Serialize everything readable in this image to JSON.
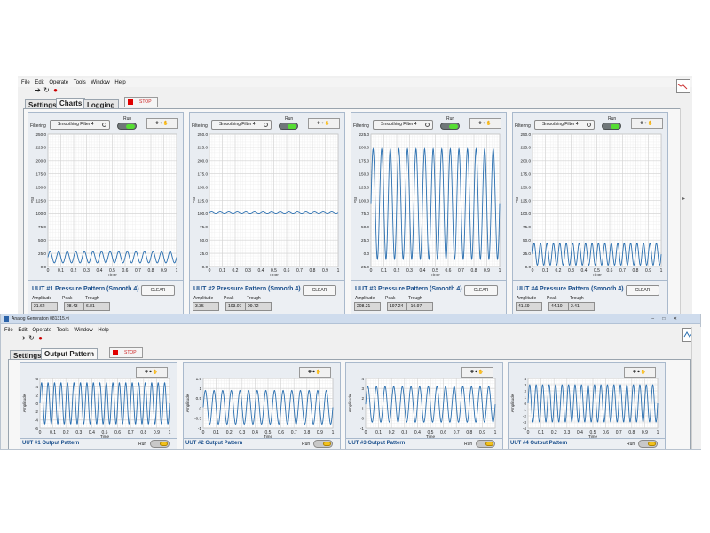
{
  "top_window": {
    "menu": [
      "File",
      "Edit",
      "Operate",
      "Tools",
      "Window",
      "Help"
    ],
    "tabs": [
      "Settings",
      "Charts",
      "Logging"
    ],
    "active_tab": "Charts",
    "stop_label": "STOP",
    "panels": [
      {
        "filtering_label": "Filtering",
        "filter_value": "Smoothing Filter 4",
        "run_label": "Run",
        "title": "UUT #1 Pressure Pattern (Smooth 4)",
        "clear_label": "CLEAR",
        "amplitude_label": "Amplitude",
        "peak_label": "Peak",
        "trough_label": "Trough",
        "amplitude": "21.62",
        "peak": "28.43",
        "trough": "6.81",
        "y_ticks": [
          "250.0",
          "225.0",
          "200.0",
          "175.0",
          "150.0",
          "125.0",
          "100.0",
          "75.0",
          "50.0",
          "25.0",
          "0.0"
        ],
        "y_axis": "PSI",
        "x_ticks": [
          "0",
          "0.1",
          "0.2",
          "0.3",
          "0.4",
          "0.5",
          "0.6",
          "0.7",
          "0.8",
          "0.9",
          "1"
        ],
        "x_axis": "Time"
      },
      {
        "filtering_label": "Filtering",
        "filter_value": "Smoothing Filter 4",
        "run_label": "Run",
        "title": "UUT #2 Pressure Pattern (Smooth 4)",
        "clear_label": "CLEAR",
        "amplitude_label": "Amplitude",
        "peak_label": "Peak",
        "trough_label": "Trough",
        "amplitude": "3.35",
        "peak": "103.07",
        "trough": "99.72",
        "y_ticks": [
          "250.0",
          "225.0",
          "200.0",
          "175.0",
          "150.0",
          "125.0",
          "100.0",
          "75.0",
          "50.0",
          "25.0",
          "0.0"
        ],
        "y_axis": "PSI",
        "x_ticks": [
          "0",
          "0.1",
          "0.2",
          "0.3",
          "0.4",
          "0.5",
          "0.6",
          "0.7",
          "0.8",
          "0.9",
          "1"
        ],
        "x_axis": "Time"
      },
      {
        "filtering_label": "Filtering",
        "filter_value": "Smoothing Filter 4",
        "run_label": "Run",
        "title": "UUT #3 Pressure Pattern (Smooth 4)",
        "clear_label": "CLEAR",
        "amplitude_label": "Amplitude",
        "peak_label": "Peak",
        "trough_label": "Trough",
        "amplitude": "208.21",
        "peak": "197.24",
        "trough": "-10.97",
        "y_ticks": [
          "225.0",
          "200.0",
          "175.0",
          "150.0",
          "125.0",
          "100.0",
          "75.0",
          "50.0",
          "25.0",
          "0.0",
          "-25.0"
        ],
        "y_axis": "PSI",
        "x_ticks": [
          "0",
          "0.1",
          "0.2",
          "0.3",
          "0.4",
          "0.5",
          "0.6",
          "0.7",
          "0.8",
          "0.9",
          "1"
        ],
        "x_axis": "Time"
      },
      {
        "filtering_label": "Filtering",
        "filter_value": "Smoothing Filter 4",
        "run_label": "Run",
        "title": "UUT #4 Pressure Pattern (Smooth 4)",
        "clear_label": "CLEAR",
        "amplitude_label": "Amplitude",
        "peak_label": "Peak",
        "trough_label": "Trough",
        "amplitude": "41.69",
        "peak": "44.10",
        "trough": "2.41",
        "y_ticks": [
          "250.0",
          "225.0",
          "200.0",
          "175.0",
          "150.0",
          "125.0",
          "100.0",
          "75.0",
          "50.0",
          "25.0",
          "0.0"
        ],
        "y_axis": "PSI",
        "x_ticks": [
          "0",
          "0.1",
          "0.2",
          "0.3",
          "0.4",
          "0.5",
          "0.6",
          "0.7",
          "0.8",
          "0.9",
          "1"
        ],
        "x_axis": "Time"
      }
    ]
  },
  "bottom_window": {
    "title": "Analog Generation 081315.vi",
    "menu": [
      "File",
      "Edit",
      "Operate",
      "Tools",
      "Window",
      "Help"
    ],
    "tabs": [
      "Settings",
      "Output Pattern"
    ],
    "active_tab": "Output Pattern",
    "stop_label": "STOP",
    "panels": [
      {
        "title": "UUT #1 Output Pattern",
        "run_label": "Run",
        "y_ticks": [
          "6",
          "4",
          "2",
          "0",
          "-2",
          "-4",
          "-6"
        ],
        "y_axis": "Amplitude",
        "x_ticks": [
          "0",
          "0.1",
          "0.2",
          "0.3",
          "0.4",
          "0.5",
          "0.6",
          "0.7",
          "0.8",
          "0.9",
          "1"
        ],
        "x_axis": "Time"
      },
      {
        "title": "UUT #2 Output Pattern",
        "run_label": "Run",
        "y_ticks": [
          "1.5",
          "1",
          "0.5",
          "0",
          "-0.5",
          "-1"
        ],
        "y_axis": "Amplitude",
        "x_ticks": [
          "0",
          "0.1",
          "0.2",
          "0.3",
          "0.4",
          "0.5",
          "0.6",
          "0.7",
          "0.8",
          "0.9",
          "1"
        ],
        "x_axis": "Time"
      },
      {
        "title": "UUT #3 Output Pattern",
        "run_label": "Run",
        "y_ticks": [
          "4",
          "3",
          "2",
          "1",
          "0",
          "-1"
        ],
        "y_axis": "Amplitude",
        "x_ticks": [
          "0",
          "0.1",
          "0.2",
          "0.3",
          "0.4",
          "0.5",
          "0.6",
          "0.7",
          "0.8",
          "0.9",
          "1"
        ],
        "x_axis": "Time"
      },
      {
        "title": "UUT #4 Output Pattern",
        "run_label": "Run",
        "y_ticks": [
          "4",
          "3",
          "2",
          "1",
          "0",
          "-1",
          "-2",
          "-3",
          "-4"
        ],
        "y_axis": "Amplitude",
        "x_ticks": [
          "0",
          "0.1",
          "0.2",
          "0.3",
          "0.4",
          "0.5",
          "0.6",
          "0.7",
          "0.8",
          "0.9",
          "1"
        ],
        "x_axis": "Time"
      }
    ]
  },
  "colors": {
    "trace": "#2a6fb0",
    "grid": "#dcdcdc",
    "title_blue": "#1a4f8c"
  },
  "chart_data": [
    {
      "type": "line",
      "title": "UUT #1 Pressure Pattern (Smooth 4)",
      "xlabel": "Time",
      "ylabel": "PSI",
      "xlim": [
        0,
        1
      ],
      "ylim": [
        0,
        250
      ],
      "grid": true,
      "series": [
        {
          "cycles": 15,
          "center": 17.6,
          "amplitude": 10.8
        }
      ]
    },
    {
      "type": "line",
      "title": "UUT #2 Pressure Pattern (Smooth 4)",
      "xlabel": "Time",
      "ylabel": "PSI",
      "xlim": [
        0,
        1
      ],
      "ylim": [
        0,
        250
      ],
      "grid": true,
      "series": [
        {
          "cycles": 15,
          "center": 101.4,
          "amplitude": 1.7
        }
      ]
    },
    {
      "type": "line",
      "title": "UUT #3 Pressure Pattern (Smooth 4)",
      "xlabel": "Time",
      "ylabel": "PSI",
      "xlim": [
        0,
        1
      ],
      "ylim": [
        -25,
        225
      ],
      "grid": true,
      "series": [
        {
          "cycles": 15,
          "center": 93.1,
          "amplitude": 104.1
        }
      ]
    },
    {
      "type": "line",
      "title": "UUT #4 Pressure Pattern (Smooth 4)",
      "xlabel": "Time",
      "ylabel": "PSI",
      "xlim": [
        0,
        1
      ],
      "ylim": [
        0,
        250
      ],
      "grid": true,
      "series": [
        {
          "cycles": 20,
          "center": 23.3,
          "amplitude": 20.8
        }
      ]
    },
    {
      "type": "line",
      "title": "UUT #1 Output Pattern",
      "xlabel": "Time",
      "ylabel": "Amplitude",
      "xlim": [
        0,
        1
      ],
      "ylim": [
        -6,
        6
      ],
      "grid": true,
      "series": [
        {
          "cycles": 20,
          "center": 0,
          "amplitude": 5
        }
      ]
    },
    {
      "type": "line",
      "title": "UUT #2 Output Pattern",
      "xlabel": "Time",
      "ylabel": "Amplitude",
      "xlim": [
        0,
        1
      ],
      "ylim": [
        -1,
        1.5
      ],
      "grid": true,
      "series": [
        {
          "cycles": 15,
          "center": 0.05,
          "amplitude": 0.85
        }
      ]
    },
    {
      "type": "line",
      "title": "UUT #3 Output Pattern",
      "xlabel": "Time",
      "ylabel": "Amplitude",
      "xlim": [
        0,
        1
      ],
      "ylim": [
        -1,
        4
      ],
      "grid": true,
      "series": [
        {
          "cycles": 15,
          "center": 1.4,
          "amplitude": 1.8
        }
      ]
    },
    {
      "type": "line",
      "title": "UUT #4 Output Pattern",
      "xlabel": "Time",
      "ylabel": "Amplitude",
      "xlim": [
        0,
        1
      ],
      "ylim": [
        -4,
        4
      ],
      "grid": true,
      "series": [
        {
          "cycles": 20,
          "center": 0,
          "amplitude": 3
        }
      ]
    }
  ]
}
